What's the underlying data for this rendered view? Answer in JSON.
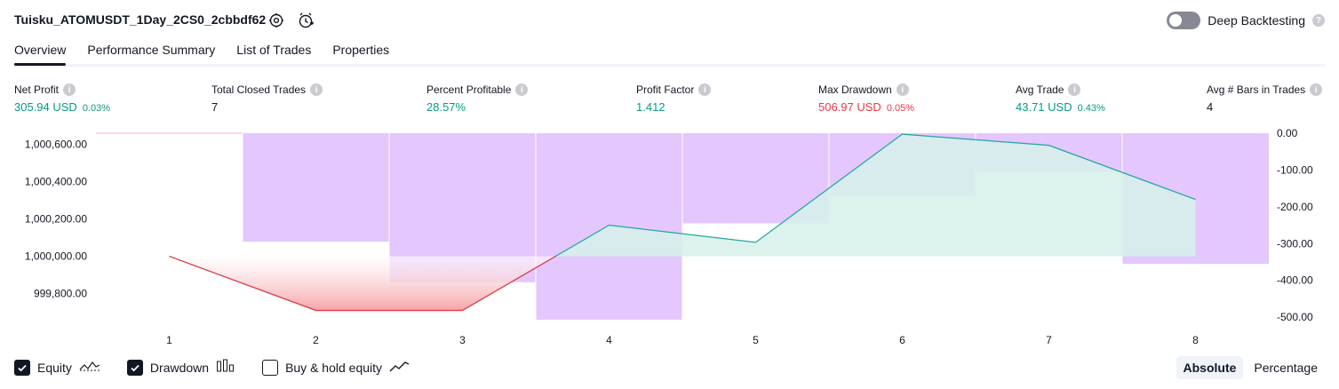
{
  "header": {
    "title": "Tuisku_ATOMUSDT_1Day_2CS0_2cbbdf62",
    "deep_backtesting_label": "Deep Backtesting",
    "deep_backtesting_enabled": false
  },
  "tabs": [
    {
      "label": "Overview",
      "active": true
    },
    {
      "label": "Performance Summary",
      "active": false
    },
    {
      "label": "List of Trades",
      "active": false
    },
    {
      "label": "Properties",
      "active": false
    }
  ],
  "stats": {
    "net_profit": {
      "label": "Net Profit",
      "value": "305.94 USD",
      "percent": "0.03%"
    },
    "total_closed_trades": {
      "label": "Total Closed Trades",
      "value": "7"
    },
    "percent_profitable": {
      "label": "Percent Profitable",
      "value": "28.57%"
    },
    "profit_factor": {
      "label": "Profit Factor",
      "value": "1.412"
    },
    "max_drawdown": {
      "label": "Max Drawdown",
      "value": "506.97 USD",
      "percent": "0.05%"
    },
    "avg_trade": {
      "label": "Avg Trade",
      "value": "43.71 USD",
      "percent": "0.43%"
    },
    "avg_bars": {
      "label": "Avg # Bars in Trades",
      "value": "4"
    }
  },
  "colors": {
    "positive": "#089981",
    "negative": "#f23645",
    "drawdown_bar": "#e1c4fd",
    "equity_line": "#22a5a0",
    "equity_fill": "#d6f1ea",
    "loss_fill": "#f6a5a9"
  },
  "chart_data": {
    "type": "line",
    "x": [
      1,
      2,
      3,
      4,
      5,
      6,
      7,
      8
    ],
    "series": [
      {
        "name": "Equity",
        "axis": "left",
        "values": [
          1000000,
          999710,
          999710,
          1000167,
          1000075,
          1000655,
          1000595,
          1000305
        ]
      },
      {
        "name": "Drawdown",
        "axis": "right",
        "type": "bar",
        "values": [
          0,
          -295,
          -405,
          -507,
          -245,
          -170,
          -105,
          -355
        ]
      }
    ],
    "left_axis": {
      "ticks": [
        "1,000,600.00",
        "1,000,400.00",
        "1,000,200.00",
        "1,000,000.00",
        "999,800.00"
      ],
      "ylim": [
        999660,
        1000660
      ]
    },
    "right_axis": {
      "ticks": [
        "0.00",
        "-100.00",
        "-200.00",
        "-300.00",
        "-400.00",
        "-500.00"
      ],
      "ylim": [
        -507,
        0
      ]
    },
    "x_ticks": [
      "1",
      "2",
      "3",
      "4",
      "5",
      "6",
      "7",
      "8"
    ]
  },
  "legend": {
    "equity": {
      "label": "Equity",
      "checked": true
    },
    "drawdown": {
      "label": "Drawdown",
      "checked": true
    },
    "buy_hold": {
      "label": "Buy & hold equity",
      "checked": false
    }
  },
  "mode": {
    "absolute": "Absolute",
    "percentage": "Percentage",
    "active": "absolute"
  }
}
